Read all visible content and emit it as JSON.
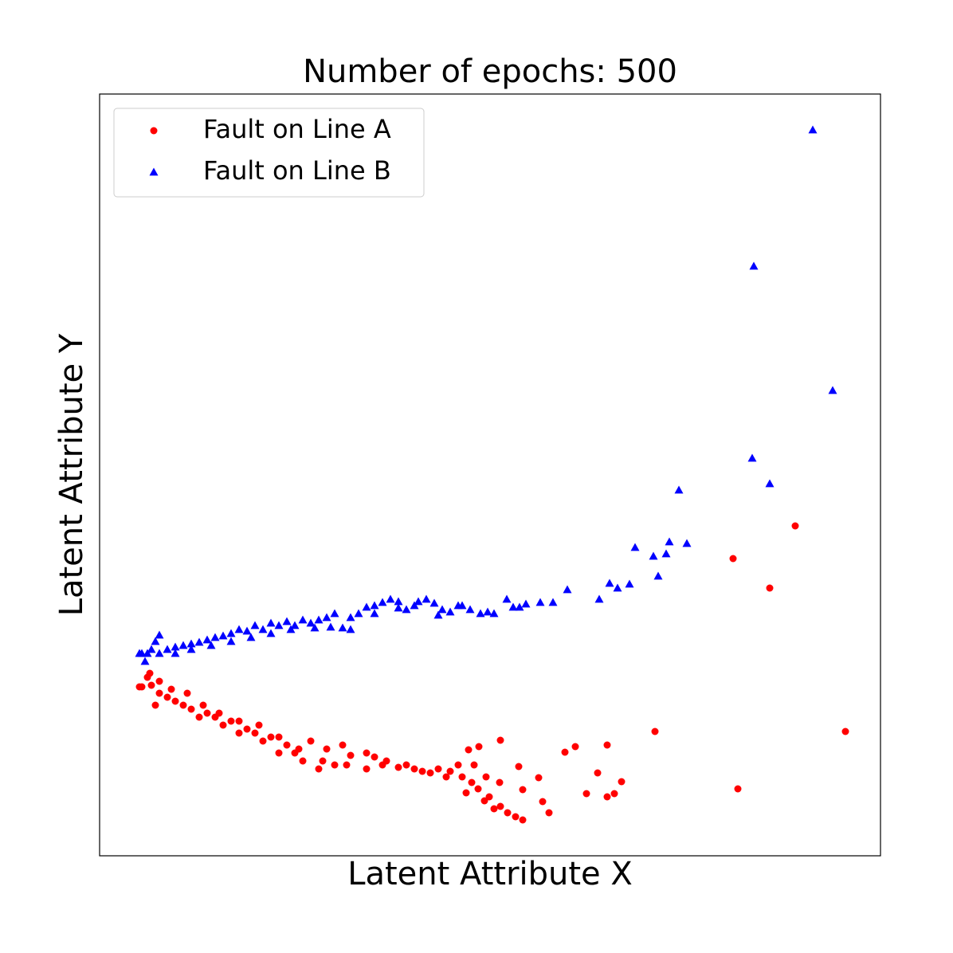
{
  "chart_data": {
    "type": "scatter",
    "title": "Number of epochs: 500",
    "x_label": "Latent Attribute X",
    "y_label": "Latent Attribute Y",
    "xlim": [
      0,
      980
    ],
    "ylim": [
      0,
      956
    ],
    "legend": "upper left",
    "series": [
      {
        "name": "Fault on Line A",
        "color": "#ff0000",
        "marker": "circle",
        "x": [
          873,
          795,
          841,
          936,
          801,
          697,
          503,
          476,
          463,
          597,
          584,
          637,
          625,
          655,
          646,
          637,
          611,
          526,
          551,
          502,
          531,
          556,
          564,
          522,
          531,
          512,
          503,
          489,
          483,
          475,
          467,
          455,
          450,
          440,
          425,
          415,
          395,
          375,
          355,
          345,
          335,
          315,
          305,
          295,
          275,
          285,
          265,
          255,
          245,
          235,
          225,
          215,
          205,
          195,
          185,
          175,
          165,
          155,
          145,
          135,
          125,
          115,
          105,
          95,
          85,
          75,
          70,
          65,
          60,
          53,
          75,
          90,
          110,
          130,
          150,
          175,
          200,
          225,
          250,
          280,
          310,
          335,
          360,
          385,
          405,
          435,
          460,
          470,
          485,
          495,
          50,
          63
        ],
        "values": [
          414,
          373,
          336,
          156,
          84,
          156,
          145,
          137,
          133,
          137,
          130,
          139,
          104,
          93,
          78,
          74,
          78,
          112,
          98,
          92,
          83,
          68,
          54,
          49,
          45,
          54,
          62,
          74,
          69,
          84,
          92,
          99,
          114,
          106,
          109,
          104,
          109,
          111,
          114,
          124,
          129,
          126,
          139,
          114,
          109,
          134,
          144,
          119,
          129,
          139,
          129,
          149,
          144,
          154,
          159,
          154,
          169,
          164,
          174,
          179,
          174,
          184,
          189,
          194,
          199,
          204,
          189,
          214,
          224,
          212,
          219,
          209,
          204,
          189,
          179,
          169,
          164,
          149,
          134,
          119,
          114,
          109,
          119,
          114,
          106,
          99,
          79,
          114,
          99,
          59,
          212,
          229
        ]
      },
      {
        "name": "Fault on Line B",
        "color": "#0000ff",
        "marker": "triangle",
        "x": [
          895,
          821,
          920,
          819,
          841,
          727,
          672,
          695,
          715,
          737,
          701,
          711,
          587,
          640,
          665,
          650,
          627,
          569,
          553,
          535,
          527,
          519,
          511,
          495,
          487,
          478,
          465,
          450,
          440,
          425,
          420,
          410,
          395,
          385,
          375,
          365,
          355,
          345,
          335,
          325,
          315,
          305,
          295,
          285,
          275,
          265,
          255,
          245,
          235,
          225,
          215,
          205,
          195,
          185,
          175,
          165,
          155,
          145,
          135,
          125,
          115,
          105,
          95,
          85,
          75,
          70,
          65,
          60,
          53,
          50,
          57,
          75,
          95,
          115,
          140,
          165,
          190,
          215,
          240,
          270,
          290,
          315,
          345,
          375,
          400,
          430,
          455
        ],
        "values": [
          911,
          740,
          584,
          499,
          467,
          459,
          387,
          376,
          394,
          392,
          351,
          379,
          334,
          342,
          341,
          336,
          322,
          318,
          318,
          316,
          312,
          312,
          322,
          304,
          306,
          304,
          309,
          314,
          306,
          302,
          317,
          322,
          314,
          309,
          319,
          322,
          318,
          314,
          312,
          304,
          299,
          286,
          304,
          299,
          296,
          292,
          296,
          289,
          294,
          289,
          292,
          284,
          289,
          282,
          284,
          279,
          276,
          274,
          271,
          268,
          266,
          264,
          262,
          259,
          277,
          269,
          259,
          254,
          254,
          254,
          244,
          254,
          254,
          259,
          264,
          269,
          274,
          279,
          284,
          286,
          287,
          284,
          304,
          311,
          319,
          309,
          314
        ]
      }
    ]
  }
}
